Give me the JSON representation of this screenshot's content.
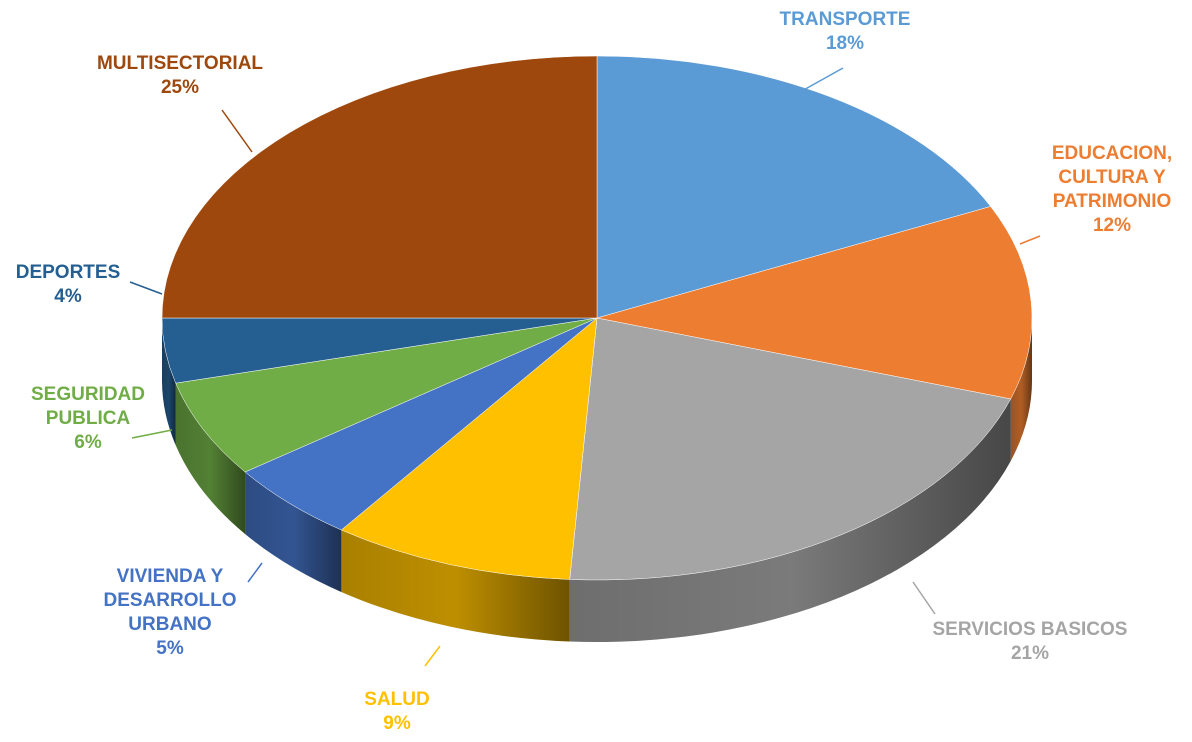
{
  "chart_data": {
    "type": "pie",
    "categories": [
      "TRANSPORTE",
      "EDUCACION, CULTURA Y PATRIMONIO",
      "SERVICIOS BASICOS",
      "SALUD",
      "VIVIENDA Y DESARROLLO URBANO",
      "SEGURIDAD PUBLICA",
      "DEPORTES",
      "MULTISECTORIAL"
    ],
    "values": [
      18,
      12,
      21,
      9,
      5,
      6,
      4,
      25
    ],
    "value_labels": [
      "18%",
      "12%",
      "21%",
      "9%",
      "5%",
      "6%",
      "4%",
      "25%"
    ],
    "colors": [
      "#5b9bd5",
      "#ed7d31",
      "#a5a5a5",
      "#ffc000",
      "#4472c4",
      "#70ad47",
      "#255e91",
      "#9e480e"
    ]
  }
}
